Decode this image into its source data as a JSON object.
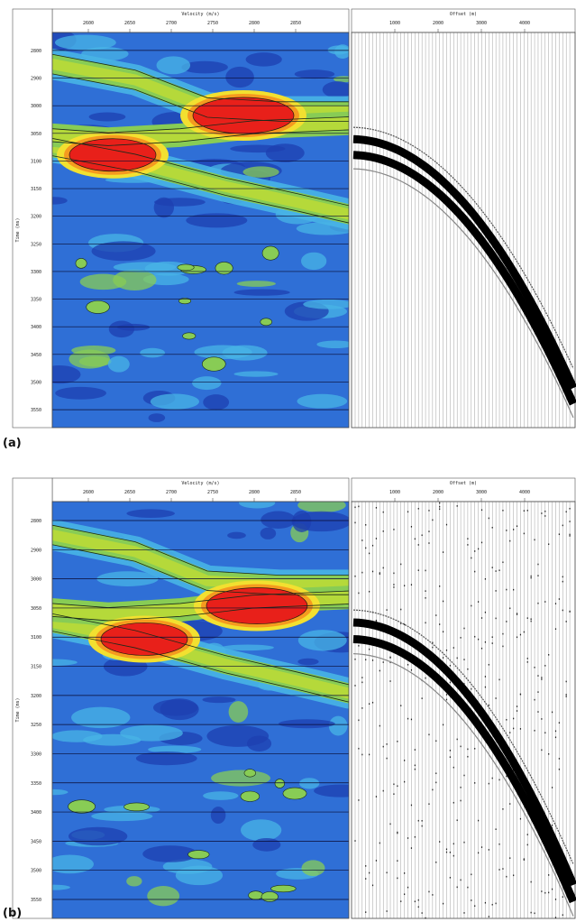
{
  "chart_data": [
    {
      "type": "heatmap",
      "panel_label": "(a)",
      "left_plot": {
        "title": "Velocity (m/s)",
        "xticks": [
          "2600",
          "2650",
          "2700",
          "2750",
          "2800",
          "2850"
        ],
        "ylabel": "Time (ms)",
        "yticks": [
          "2800",
          "2900",
          "3000",
          "3050",
          "3100",
          "3150",
          "3200",
          "3250",
          "3300",
          "3350",
          "3400",
          "3450",
          "3500",
          "3550"
        ],
        "colormap": [
          "#1e3fb0",
          "#2f6fd6",
          "#48b4e6",
          "#88cc55",
          "#f2e030",
          "#f59a1f",
          "#e8201a"
        ]
      },
      "right_plot": {
        "title": "Offset (m)",
        "xticks": [
          "1000",
          "2000",
          "3000",
          "4000"
        ],
        "type": "seismic gather"
      }
    },
    {
      "type": "heatmap",
      "panel_label": "(b)",
      "left_plot": {
        "title": "Velocity (m/s)",
        "xticks": [
          "2600",
          "2650",
          "2700",
          "2750",
          "2800",
          "2850"
        ],
        "ylabel": "Time (ms)",
        "yticks": [
          "2800",
          "2900",
          "3000",
          "3050",
          "3100",
          "3150",
          "3200",
          "3250",
          "3300",
          "3350",
          "3400",
          "3450",
          "3500",
          "3550"
        ],
        "colormap": [
          "#1e3fb0",
          "#2f6fd6",
          "#48b4e6",
          "#88cc55",
          "#f2e030",
          "#f59a1f",
          "#e8201a"
        ]
      },
      "right_plot": {
        "title": "Offset (m)",
        "xticks": [
          "1000",
          "2000",
          "3000",
          "4000"
        ],
        "type": "seismic gather"
      }
    }
  ]
}
